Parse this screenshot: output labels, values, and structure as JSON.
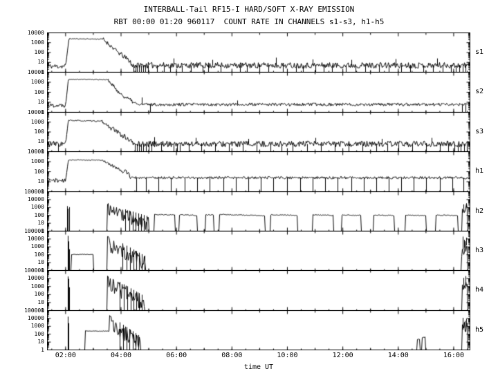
{
  "title": "INTERBALL-Tail RF15-I HARD/SOFT X-RAY EMISSION",
  "subtitle": "RBT 00:00 01:20 960117  COUNT RATE IN CHANNELS s1-s3, h1-h5",
  "x_axis": {
    "label": "time UT",
    "ticks": [
      {
        "t": 2,
        "label": "02:00"
      },
      {
        "t": 4,
        "label": "04:00"
      },
      {
        "t": 6,
        "label": "06:00"
      },
      {
        "t": 8,
        "label": "08:00"
      },
      {
        "t": 10,
        "label": "10:00"
      },
      {
        "t": 12,
        "label": "12:00"
      },
      {
        "t": 14,
        "label": "14:00"
      },
      {
        "t": 16,
        "label": "16:00"
      }
    ]
  },
  "chart_data": {
    "type": "line",
    "x_unit": "time UT (hours), date 960117",
    "y_unit": "count rate, log scale",
    "x_range": [
      1.33,
      16.6
    ],
    "panels": [
      {
        "label": "s1",
        "seed": 11,
        "ylim": [
          1,
          10000
        ],
        "yticks": [
          10000,
          1000,
          100,
          10,
          1
        ],
        "segments": [
          [
            1.33,
            2.0,
            4,
            4,
            0.25
          ],
          [
            2.0,
            2.12,
            4,
            2500,
            0.05
          ],
          [
            2.12,
            3.35,
            2500,
            2300,
            0.04
          ],
          [
            3.35,
            3.9,
            2300,
            100,
            0.2
          ],
          [
            3.9,
            4.35,
            100,
            12,
            0.25
          ],
          [
            4.35,
            16.6,
            5,
            5,
            0.3
          ]
        ],
        "drops": [
          4.45,
          4.52,
          4.58,
          4.66,
          4.72,
          4.8,
          4.88,
          4.97,
          5.3,
          5.55,
          5.78,
          6.2,
          6.52,
          6.95,
          7.15,
          7.6,
          8.3,
          8.55,
          9.0,
          9.32,
          9.85,
          10.3,
          10.55,
          11.0,
          11.3,
          11.62,
          12.1,
          12.45,
          12.8,
          13.3,
          13.65,
          14.1,
          14.42,
          14.9,
          15.25,
          15.6,
          15.9,
          16.08,
          16.2,
          16.32,
          16.42
        ],
        "spikes": [
          [
            5.9,
            25
          ],
          [
            7.3,
            18
          ],
          [
            9.6,
            30
          ],
          [
            10.9,
            20
          ],
          [
            12.3,
            18
          ],
          [
            13.9,
            22
          ],
          [
            15.4,
            25
          ]
        ]
      },
      {
        "label": "s2",
        "seed": 22,
        "ylim": [
          1,
          10000
        ],
        "yticks": [
          10000,
          1000,
          100,
          10,
          1
        ],
        "segments": [
          [
            1.33,
            2.0,
            5,
            5,
            0.2
          ],
          [
            2.0,
            2.1,
            5,
            2000,
            0.05
          ],
          [
            2.1,
            3.5,
            2000,
            1800,
            0.04
          ],
          [
            3.5,
            4.0,
            1800,
            60,
            0.2
          ],
          [
            4.0,
            4.55,
            60,
            7,
            0.2
          ],
          [
            4.55,
            16.6,
            6,
            6,
            0.15
          ]
        ],
        "drops": [
          5.05,
          16.3,
          16.42
        ],
        "spikes": [
          [
            4.75,
            30
          ],
          [
            8.2,
            15
          ]
        ]
      },
      {
        "label": "s3",
        "seed": 33,
        "ylim": [
          1,
          10000
        ],
        "yticks": [
          10000,
          1000,
          100,
          10,
          1
        ],
        "segments": [
          [
            1.33,
            2.0,
            6,
            6,
            0.3
          ],
          [
            2.0,
            2.1,
            6,
            1500,
            0.05
          ],
          [
            2.1,
            3.3,
            1500,
            1200,
            0.06
          ],
          [
            3.3,
            3.6,
            1200,
            300,
            0.15
          ],
          [
            3.6,
            4.4,
            300,
            10,
            0.25
          ],
          [
            4.4,
            16.6,
            6,
            6,
            0.3
          ]
        ],
        "drops": [
          1.72,
          4.5,
          4.57,
          4.64,
          4.72,
          4.8,
          4.9,
          5.0,
          5.1,
          5.45,
          5.9,
          6.02,
          6.12,
          6.45,
          6.9,
          7.4,
          7.9,
          8.4,
          8.9,
          9.4,
          9.8,
          10.2,
          10.7,
          11.2,
          11.7,
          12.2,
          12.7,
          13.2,
          13.6,
          14.0,
          14.5,
          15.0,
          15.5,
          15.8,
          16.02,
          16.14,
          16.26,
          16.38,
          16.48
        ],
        "spikes": [
          [
            5.2,
            30
          ],
          [
            6.7,
            25
          ],
          [
            8.6,
            20
          ],
          [
            11.0,
            25
          ],
          [
            13.4,
            20
          ],
          [
            15.2,
            25
          ]
        ]
      },
      {
        "label": "h1",
        "seed": 44,
        "ylim": [
          1,
          10000
        ],
        "yticks": [
          10000,
          1000,
          100,
          10,
          1
        ],
        "segments": [
          [
            1.33,
            2.0,
            15,
            12,
            0.2
          ],
          [
            2.0,
            2.1,
            12,
            1500,
            0.05
          ],
          [
            2.1,
            3.35,
            1500,
            1400,
            0.04
          ],
          [
            3.35,
            3.5,
            1400,
            700,
            0.1
          ],
          [
            3.5,
            4.0,
            700,
            150,
            0.15
          ],
          [
            4.0,
            4.3,
            150,
            60,
            0.3
          ],
          [
            4.3,
            16.6,
            25,
            25,
            0.12
          ]
        ],
        "drops": [
          4.55,
          4.9,
          5.35,
          5.8,
          6.3,
          6.75,
          7.2,
          7.7,
          8.15,
          8.6,
          9.05,
          9.5,
          10.0,
          10.45,
          10.9,
          11.35,
          11.8,
          12.3,
          12.75,
          13.2,
          13.65,
          14.1,
          14.55,
          15.0,
          15.5,
          15.95,
          16.35
        ],
        "spikes": []
      },
      {
        "label": "h2",
        "seed": 55,
        "ylim": [
          1,
          100000
        ],
        "yticks": [
          100000,
          10000,
          1000,
          100,
          10,
          1
        ],
        "segments": [
          [
            1.33,
            2.03,
            1,
            1,
            0
          ],
          [
            2.2,
            3.5,
            1,
            1,
            0
          ],
          [
            3.5,
            3.56,
            2500,
            2500,
            0.15
          ],
          [
            3.56,
            5.0,
            2500,
            70,
            0.9,
            -1
          ],
          [
            5.2,
            5.95,
            130,
            110,
            0.06
          ],
          [
            6.1,
            6.75,
            120,
            100,
            0.06
          ],
          [
            7.05,
            7.35,
            115,
            110,
            0.05
          ],
          [
            7.55,
            9.2,
            130,
            90,
            0.05
          ],
          [
            9.4,
            10.35,
            120,
            100,
            0.05
          ],
          [
            10.9,
            11.65,
            115,
            100,
            0.05
          ],
          [
            11.95,
            12.65,
            110,
            100,
            0.05
          ],
          [
            13.1,
            13.85,
            110,
            95,
            0.05
          ],
          [
            14.25,
            15.0,
            105,
            95,
            0.05
          ],
          [
            15.35,
            16.15,
            110,
            95,
            0.05
          ],
          [
            16.3,
            16.5,
            500,
            1500,
            0.7
          ]
        ],
        "drops": [
          4.15,
          4.3,
          4.42,
          4.52,
          4.62,
          4.72,
          4.82,
          4.92
        ],
        "spikes": [
          [
            2.05,
            1500
          ],
          [
            2.09,
            700
          ],
          [
            2.14,
            1100
          ],
          [
            16.34,
            2500
          ],
          [
            16.44,
            3000
          ]
        ]
      },
      {
        "label": "h3",
        "seed": 66,
        "ylim": [
          1,
          100000
        ],
        "yticks": [
          100000,
          10000,
          1000,
          100,
          10,
          1
        ],
        "segments": [
          [
            1.33,
            2.05,
            1,
            1,
            0
          ],
          [
            2.2,
            3.0,
            110,
            110,
            0.03
          ],
          [
            3.0,
            3.5,
            1,
            1,
            0
          ],
          [
            3.5,
            3.56,
            25000,
            25000,
            0.15
          ],
          [
            3.56,
            4.9,
            25000,
            60,
            1.0,
            -1
          ],
          [
            4.9,
            16.22,
            1,
            1,
            0
          ],
          [
            16.28,
            16.5,
            300,
            2500,
            0.8
          ]
        ],
        "drops": [
          4.05,
          4.2,
          4.32,
          4.45,
          4.55,
          4.65,
          4.75,
          4.85
        ],
        "spikes": [
          [
            2.07,
            25000
          ],
          [
            2.1,
            5000
          ],
          [
            2.13,
            500
          ],
          [
            16.32,
            20000
          ],
          [
            16.38,
            8000
          ],
          [
            16.45,
            15000
          ]
        ]
      },
      {
        "label": "h4",
        "seed": 77,
        "ylim": [
          1,
          100000
        ],
        "yticks": [
          100000,
          10000,
          1000,
          100,
          10,
          1
        ],
        "segments": [
          [
            1.33,
            2.05,
            1,
            1,
            0
          ],
          [
            2.16,
            3.5,
            1,
            1,
            0
          ],
          [
            3.5,
            3.56,
            22000,
            22000,
            0.15
          ],
          [
            3.56,
            4.85,
            22000,
            60,
            1.0,
            -1
          ],
          [
            4.85,
            16.25,
            1,
            1,
            0
          ],
          [
            16.3,
            16.5,
            400,
            3000,
            0.8
          ]
        ],
        "drops": [
          3.95,
          4.1,
          4.22,
          4.35,
          4.45,
          4.55,
          4.65,
          4.75
        ],
        "spikes": [
          [
            2.07,
            18000
          ],
          [
            2.1,
            9000
          ],
          [
            2.13,
            800
          ],
          [
            16.34,
            12000
          ],
          [
            16.42,
            20000
          ]
        ]
      },
      {
        "label": "h5",
        "seed": 88,
        "ylim": [
          1,
          100000
        ],
        "yticks": [
          100000,
          10000,
          1000,
          100,
          10,
          1
        ],
        "segments": [
          [
            1.33,
            2.05,
            1,
            1,
            0
          ],
          [
            2.15,
            2.7,
            1,
            1,
            0
          ],
          [
            2.7,
            3.58,
            260,
            240,
            0.04
          ],
          [
            3.58,
            3.64,
            18000,
            18000,
            0.15
          ],
          [
            3.64,
            4.7,
            18000,
            50,
            1.0,
            -1
          ],
          [
            4.7,
            14.65,
            1,
            1,
            0
          ],
          [
            14.68,
            14.78,
            22,
            22,
            0.05
          ],
          [
            14.85,
            14.97,
            40,
            40,
            0.05
          ],
          [
            14.97,
            16.25,
            1,
            1,
            0
          ],
          [
            16.3,
            16.5,
            300,
            1500,
            0.8
          ]
        ],
        "drops": [
          3.95,
          4.08,
          4.2,
          4.3,
          4.42,
          4.52,
          4.62
        ],
        "spikes": [
          [
            2.08,
            17000
          ],
          [
            2.11,
            2500
          ],
          [
            16.33,
            12000
          ],
          [
            16.4,
            5000
          ],
          [
            16.46,
            9000
          ]
        ]
      }
    ]
  }
}
